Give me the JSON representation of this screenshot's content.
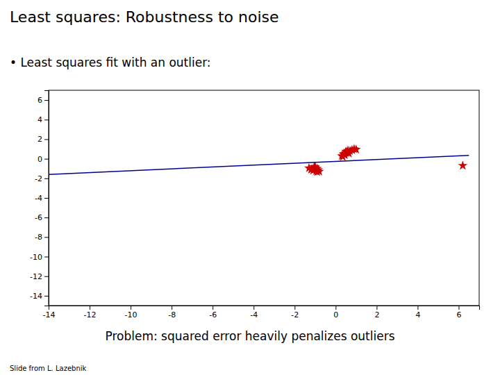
{
  "chart_data": {
    "type": "scatter",
    "title": "Least squares: Robustness to noise",
    "subtitle": "• Least squares fit with an outlier:",
    "annotations": [
      "Problem: squared error heavily penalizes outliers",
      "Slide from L. Lazebnik"
    ],
    "xlim": [
      -14,
      7
    ],
    "ylim": [
      -15,
      7
    ],
    "xticks": [
      -14,
      -12,
      -10,
      -8,
      -6,
      -4,
      -2,
      0,
      2,
      4,
      6
    ],
    "yticks": [
      -14,
      -12,
      -10,
      -8,
      -6,
      -4,
      -2,
      0,
      2,
      4,
      6
    ],
    "grid": false,
    "series": [
      {
        "type": "scatter",
        "marker": "star",
        "color": "#CC0000",
        "x": [
          -1.2,
          -1.1,
          -1.0,
          -0.9,
          -0.8,
          -1.3,
          -0.95,
          -1.05,
          -1.15,
          -0.85,
          -1.0,
          -0.9
        ],
        "values": [
          -1.1,
          -1.2,
          -0.9,
          -1.0,
          -1.3,
          -0.95,
          -1.25,
          -0.85,
          -1.05,
          -1.15,
          -0.8,
          -1.35
        ]
      },
      {
        "type": "scatter",
        "marker": "star",
        "color": "#CC0000",
        "x": [
          0.3,
          0.4,
          0.5,
          0.6,
          0.7,
          0.45,
          0.55,
          0.35,
          0.65,
          0.5,
          0.4,
          0.6,
          0.8,
          1.0,
          0.9
        ],
        "values": [
          0.3,
          0.5,
          0.6,
          0.7,
          0.8,
          0.4,
          0.65,
          0.2,
          0.55,
          0.75,
          0.45,
          0.85,
          0.9,
          0.95,
          1.0
        ]
      },
      {
        "type": "scatter",
        "marker": "star",
        "color": "#CC0000",
        "x": [
          6.2
        ],
        "values": [
          -0.7
        ]
      },
      {
        "type": "line",
        "color": "#00008B",
        "x": [
          -14,
          6.5
        ],
        "values": [
          -1.6,
          0.35
        ]
      }
    ]
  }
}
